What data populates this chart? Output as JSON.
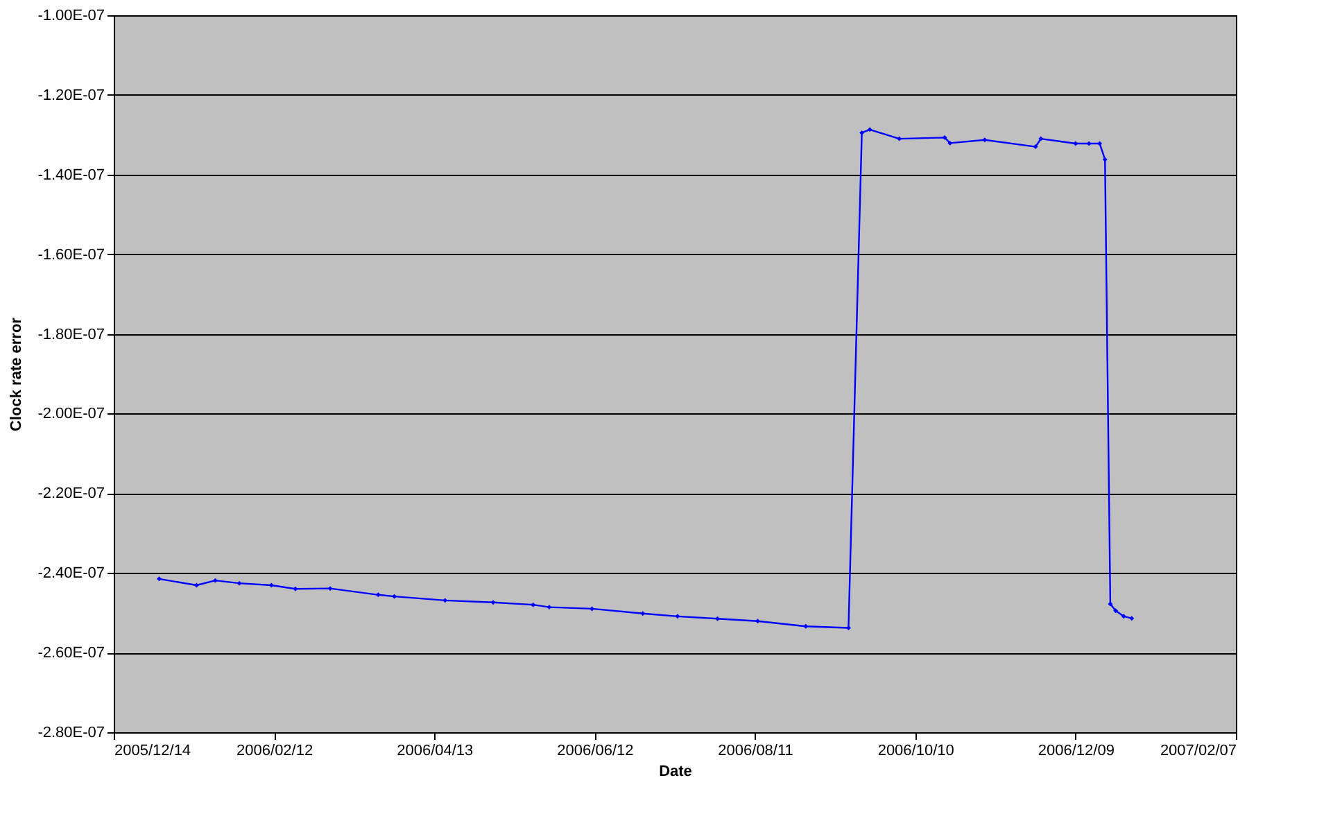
{
  "chart_data": {
    "type": "line",
    "xlabel": "Date",
    "ylabel": "Clock rate error",
    "x": [
      "2005-12-31",
      "2006-01-14",
      "2006-01-21",
      "2006-01-30",
      "2006-02-11",
      "2006-02-20",
      "2006-03-05",
      "2006-03-23",
      "2006-03-29",
      "2006-04-17",
      "2006-05-05",
      "2006-05-20",
      "2006-05-26",
      "2006-06-11",
      "2006-06-30",
      "2006-07-13",
      "2006-07-28",
      "2006-08-12",
      "2006-08-30",
      "2006-09-15",
      "2006-09-20",
      "2006-09-23",
      "2006-10-04",
      "2006-10-21",
      "2006-10-23",
      "2006-11-05",
      "2006-11-24",
      "2006-11-26",
      "2006-12-09",
      "2006-12-14",
      "2006-12-18",
      "2006-12-20",
      "2006-12-22",
      "2006-12-24",
      "2006-12-27",
      "2006-12-30"
    ],
    "series": [
      {
        "color": "#0000ff",
        "values": [
          -2.415e-07,
          -2.431e-07,
          -2.419e-07,
          -2.426e-07,
          -2.431e-07,
          -2.44e-07,
          -2.439e-07,
          -2.455e-07,
          -2.459e-07,
          -2.469e-07,
          -2.474e-07,
          -2.48e-07,
          -2.486e-07,
          -2.49e-07,
          -2.502e-07,
          -2.509e-07,
          -2.515e-07,
          -2.521e-07,
          -2.534e-07,
          -2.538e-07,
          -1.295e-07,
          -1.287e-07,
          -1.31e-07,
          -1.307e-07,
          -1.321e-07,
          -1.313e-07,
          -1.33e-07,
          -1.31e-07,
          -1.322e-07,
          -1.322e-07,
          -1.322e-07,
          -1.362e-07,
          -2.478e-07,
          -2.495e-07,
          -2.509e-07,
          -2.514e-07
        ]
      }
    ],
    "xlim": [
      "2005-12-14",
      "2007-02-07"
    ],
    "xticks": [
      {
        "value": "2005-12-14",
        "label": "2005/12/14"
      },
      {
        "value": "2006-02-12",
        "label": "2006/02/12"
      },
      {
        "value": "2006-04-13",
        "label": "2006/04/13"
      },
      {
        "value": "2006-06-12",
        "label": "2006/06/12"
      },
      {
        "value": "2006-08-11",
        "label": "2006/08/11"
      },
      {
        "value": "2006-10-10",
        "label": "2006/10/10"
      },
      {
        "value": "2006-12-09",
        "label": "2006/12/09"
      },
      {
        "value": "2007-02-07",
        "label": "2007/02/07"
      }
    ],
    "ylim": [
      -2.8e-07,
      -1e-07
    ],
    "yticks": [
      {
        "value": -2.8e-07,
        "label": "-2.80E-07"
      },
      {
        "value": -2.6e-07,
        "label": "-2.60E-07"
      },
      {
        "value": -2.4e-07,
        "label": "-2.40E-07"
      },
      {
        "value": -2.2e-07,
        "label": "-2.20E-07"
      },
      {
        "value": -2e-07,
        "label": "-2.00E-07"
      },
      {
        "value": -1.8e-07,
        "label": "-1.80E-07"
      },
      {
        "value": -1.6e-07,
        "label": "-1.60E-07"
      },
      {
        "value": -1.4e-07,
        "label": "-1.40E-07"
      },
      {
        "value": -1.2e-07,
        "label": "-1.20E-07"
      },
      {
        "value": -1e-07,
        "label": "-1.00E-07"
      }
    ],
    "grid": "y",
    "marker": "diamond",
    "line_style": "solid"
  }
}
